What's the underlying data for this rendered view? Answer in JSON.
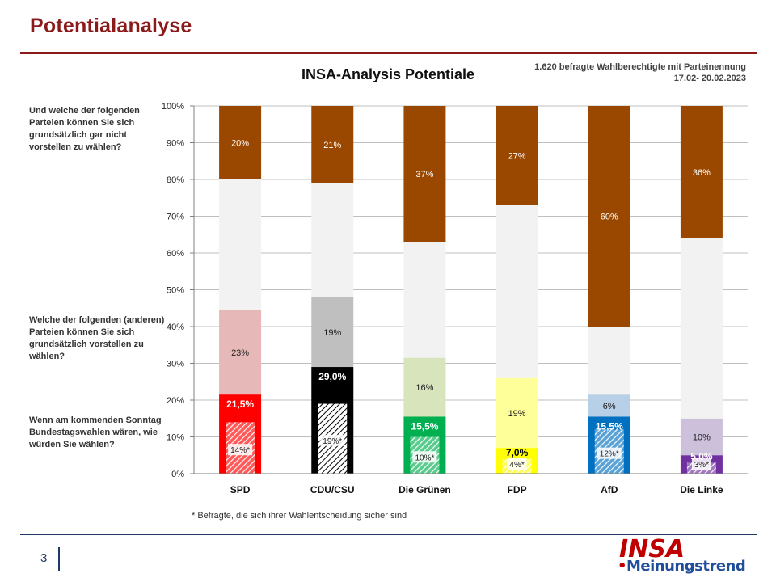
{
  "slide": {
    "title": "Potentialanalyse",
    "page_number": "3",
    "footnote": "* Befragte, die sich ihrer Wahlentscheidung sicher sind",
    "survey_info_line1": "1.620 befragte Wahlberechtigte mit Parteinennung",
    "survey_info_line2": "17.02- 20.02.2023",
    "questions": [
      "Und welche der folgenden Parteien können Sie sich grundsätzlich  gar nicht vorstellen zu wählen?",
      "Welche der folgenden (anderen) Parteien können Sie sich  grundsätzlich vorstellen zu wählen?",
      "Wenn am kommenden Sonntag Bundestagswahlen wären, wie würden Sie wählen?"
    ],
    "logo": {
      "word": "INSA",
      "sub_dot": "•",
      "sub": "Meinungstrend"
    }
  },
  "chart_data": {
    "type": "bar",
    "stacked": true,
    "title": "INSA-Analysis Potentiale",
    "ylim": [
      0,
      100
    ],
    "yticks": [
      "0%",
      "10%",
      "20%",
      "30%",
      "40%",
      "50%",
      "60%",
      "70%",
      "80%",
      "90%",
      "100%"
    ],
    "grid": true,
    "categories": [
      "SPD",
      "CDU/CSU",
      "Die Grünen",
      "FDP",
      "AfD",
      "Die Linke"
    ],
    "vote_intention": [
      21.5,
      29.0,
      15.5,
      7.0,
      15.5,
      5.0
    ],
    "vote_intention_labels": [
      "21,5%",
      "29,0%",
      "15,5%",
      "7,0%",
      "15,5%",
      "5,0%"
    ],
    "sure_voters": [
      14,
      19,
      10,
      4,
      12,
      3
    ],
    "sure_voters_labels": [
      "14%*",
      "19%*",
      "10%*",
      "4%*",
      "12%*",
      "3%*"
    ],
    "additional_potential": [
      23,
      19,
      16,
      19,
      6,
      10
    ],
    "additional_potential_labels": [
      "23%",
      "19%",
      "16%",
      "19%",
      "6%",
      "10%"
    ],
    "rejection": [
      20,
      21,
      37,
      27,
      60,
      36
    ],
    "rejection_labels": [
      "20%",
      "21%",
      "37%",
      "27%",
      "60%",
      "36%"
    ],
    "colors": {
      "vote": [
        "#ff0000",
        "#000000",
        "#00b050",
        "#ffff00",
        "#0070c0",
        "#7030a0"
      ],
      "potential": [
        "#e6b9b8",
        "#bfbfbf",
        "#d8e4bc",
        "#ffff99",
        "#b7d0e8",
        "#ccc0da"
      ],
      "remainder": "#f2f2f2",
      "rejection": "#9a4800"
    }
  }
}
